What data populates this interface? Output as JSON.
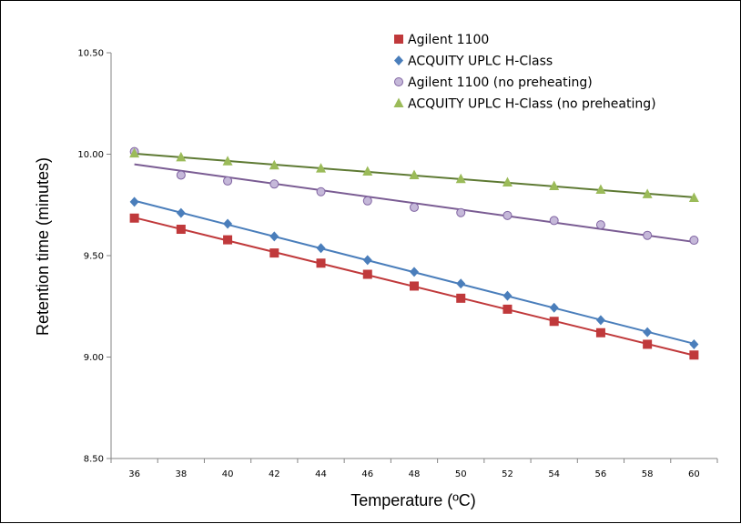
{
  "chart_data": {
    "type": "scatter",
    "title": "",
    "xlabel": "Temperature (ºC)",
    "ylabel": "Retention time (minutes)",
    "x": [
      36,
      38,
      40,
      42,
      44,
      46,
      48,
      50,
      52,
      54,
      56,
      58,
      60
    ],
    "x_tick_labels": [
      "36",
      "38",
      "40",
      "42",
      "44",
      "46",
      "48",
      "50",
      "52",
      "54",
      "56",
      "58",
      "60"
    ],
    "y_tick_labels": [
      "8.50",
      "9.00",
      "9.50",
      "10.00",
      "10.50"
    ],
    "y_ticks": [
      8.5,
      9.0,
      9.5,
      10.0,
      10.5
    ],
    "ylim": [
      8.5,
      10.5
    ],
    "xlim": [
      35,
      61
    ],
    "grid": false,
    "legend_position": "top-right",
    "series": [
      {
        "name": "Agilent 1100",
        "marker": "square",
        "color": "#C0393B",
        "trendline": true,
        "values": [
          9.685,
          9.63,
          9.578,
          9.513,
          9.463,
          9.408,
          9.35,
          9.29,
          9.236,
          9.176,
          9.12,
          9.063,
          9.01
        ]
      },
      {
        "name": "ACQUITY UPLC H-Class",
        "marker": "diamond",
        "color": "#4A7EBB",
        "trendline": true,
        "values": [
          9.765,
          9.71,
          9.657,
          9.595,
          9.537,
          9.478,
          9.42,
          9.362,
          9.302,
          9.243,
          9.182,
          9.123,
          9.063
        ]
      },
      {
        "name": "Agilent 1100 (no preheating)",
        "marker": "circle",
        "color": "#C5B8D9",
        "line_color": "#7A5C93",
        "trendline": true,
        "values": [
          10.013,
          9.897,
          9.868,
          9.853,
          9.815,
          9.77,
          9.738,
          9.712,
          9.698,
          9.673,
          9.652,
          9.6,
          9.576
        ]
      },
      {
        "name": "ACQUITY UPLC H-Class (no preheating)",
        "marker": "triangle",
        "color": "#9BBB59",
        "line_color": "#5E7A33",
        "trendline": true,
        "values": [
          10.004,
          9.985,
          9.965,
          9.945,
          9.93,
          9.915,
          9.897,
          9.878,
          9.861,
          9.843,
          9.825,
          9.803,
          9.785
        ]
      }
    ]
  }
}
